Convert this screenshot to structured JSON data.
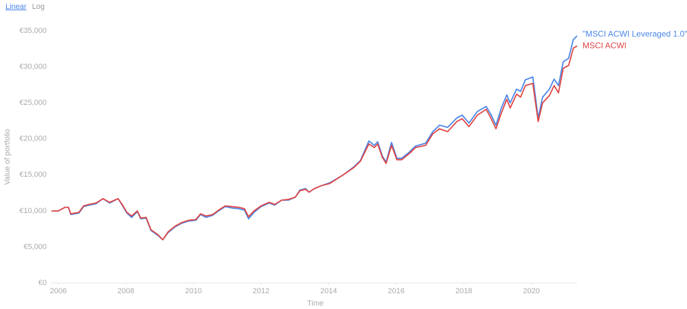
{
  "chart_data": {
    "type": "line",
    "scale_options": [
      "Linear",
      "Log"
    ],
    "log_scale": false,
    "x_label": "Time",
    "y_label": "Value of portfolio",
    "xlim": [
      2005.8,
      2021.35
    ],
    "xticks": [
      2006,
      2008,
      2010,
      2012,
      2014,
      2016,
      2018,
      2020
    ],
    "ylim": [
      0,
      35000
    ],
    "yticks": [
      {
        "value": 0,
        "label": "€0"
      },
      {
        "value": 5000,
        "label": "€5,000"
      },
      {
        "value": 10000,
        "label": "€10,000"
      },
      {
        "value": 15000,
        "label": "€15,000"
      },
      {
        "value": 20000,
        "label": "€20,000"
      },
      {
        "value": 25000,
        "label": "€25,000"
      },
      {
        "value": 30000,
        "label": "€30,000"
      },
      {
        "value": 35000,
        "label": "€35,000"
      }
    ],
    "grid": false,
    "x": [
      2005.8,
      2006.0,
      2006.2,
      2006.3,
      2006.37,
      2006.61,
      2006.75,
      2006.91,
      2007.12,
      2007.32,
      2007.52,
      2007.77,
      2007.89,
      2008.03,
      2008.17,
      2008.34,
      2008.44,
      2008.6,
      2008.74,
      2008.95,
      2009.09,
      2009.25,
      2009.46,
      2009.66,
      2009.86,
      2010.07,
      2010.21,
      2010.37,
      2010.57,
      2010.74,
      2010.94,
      2011.14,
      2011.35,
      2011.51,
      2011.63,
      2011.79,
      2012.0,
      2012.24,
      2012.4,
      2012.61,
      2012.81,
      2013.01,
      2013.15,
      2013.32,
      2013.42,
      2013.58,
      2013.78,
      2014.03,
      2014.43,
      2014.74,
      2014.94,
      2015.19,
      2015.35,
      2015.45,
      2015.59,
      2015.7,
      2015.86,
      2016.02,
      2016.16,
      2016.37,
      2016.57,
      2016.87,
      2017.08,
      2017.28,
      2017.52,
      2017.79,
      2017.95,
      2018.15,
      2018.4,
      2018.66,
      2018.8,
      2018.95,
      2019.11,
      2019.27,
      2019.37,
      2019.56,
      2019.68,
      2019.82,
      2020.04,
      2020.2,
      2020.33,
      2020.53,
      2020.67,
      2020.8,
      2020.94,
      2021.1,
      2021.24,
      2021.35
    ],
    "series": [
      {
        "name": "\"MSCI ACWI Leveraged 1.0\"",
        "color": "#4a86e8",
        "values": [
          10000,
          10000,
          10500,
          10500,
          9500,
          9700,
          10600,
          10800,
          11000,
          11700,
          11100,
          11700,
          10800,
          9700,
          9100,
          9900,
          8900,
          9000,
          7300,
          6600,
          6000,
          7000,
          7800,
          8300,
          8600,
          8700,
          9500,
          9100,
          9400,
          10000,
          10600,
          10400,
          10300,
          10100,
          8900,
          9800,
          10600,
          11100,
          10800,
          11500,
          11500,
          11900,
          12900,
          13100,
          12600,
          13100,
          13500,
          13900,
          15000,
          16100,
          17000,
          19700,
          19100,
          19600,
          17600,
          16800,
          19500,
          17300,
          17300,
          18100,
          19000,
          19400,
          21000,
          21900,
          21600,
          22900,
          23300,
          22200,
          23800,
          24500,
          23400,
          21900,
          24300,
          26100,
          25000,
          26900,
          26600,
          28200,
          28600,
          22900,
          25800,
          26900,
          28300,
          27400,
          30700,
          31200,
          33800,
          34300
        ]
      },
      {
        "name": "MSCI ACWI",
        "color": "#e04646",
        "values": [
          10000,
          10000,
          10500,
          10500,
          9600,
          9800,
          10700,
          10900,
          11100,
          11700,
          11200,
          11700,
          10900,
          9800,
          9300,
          10000,
          9000,
          9100,
          7400,
          6700,
          6000,
          7100,
          7900,
          8400,
          8700,
          8800,
          9600,
          9300,
          9500,
          10100,
          10700,
          10600,
          10500,
          10300,
          9200,
          10000,
          10700,
          11200,
          10900,
          11500,
          11600,
          11900,
          12800,
          13000,
          12600,
          13100,
          13500,
          13800,
          15000,
          16000,
          16900,
          19300,
          18800,
          19300,
          17400,
          16600,
          19100,
          17100,
          17100,
          17900,
          18800,
          19100,
          20700,
          21400,
          21000,
          22400,
          22800,
          21700,
          23300,
          24100,
          22900,
          21400,
          23600,
          25500,
          24300,
          26200,
          25800,
          27400,
          27700,
          22400,
          25000,
          26000,
          27400,
          26400,
          29800,
          30200,
          32600,
          32900
        ]
      }
    ]
  }
}
